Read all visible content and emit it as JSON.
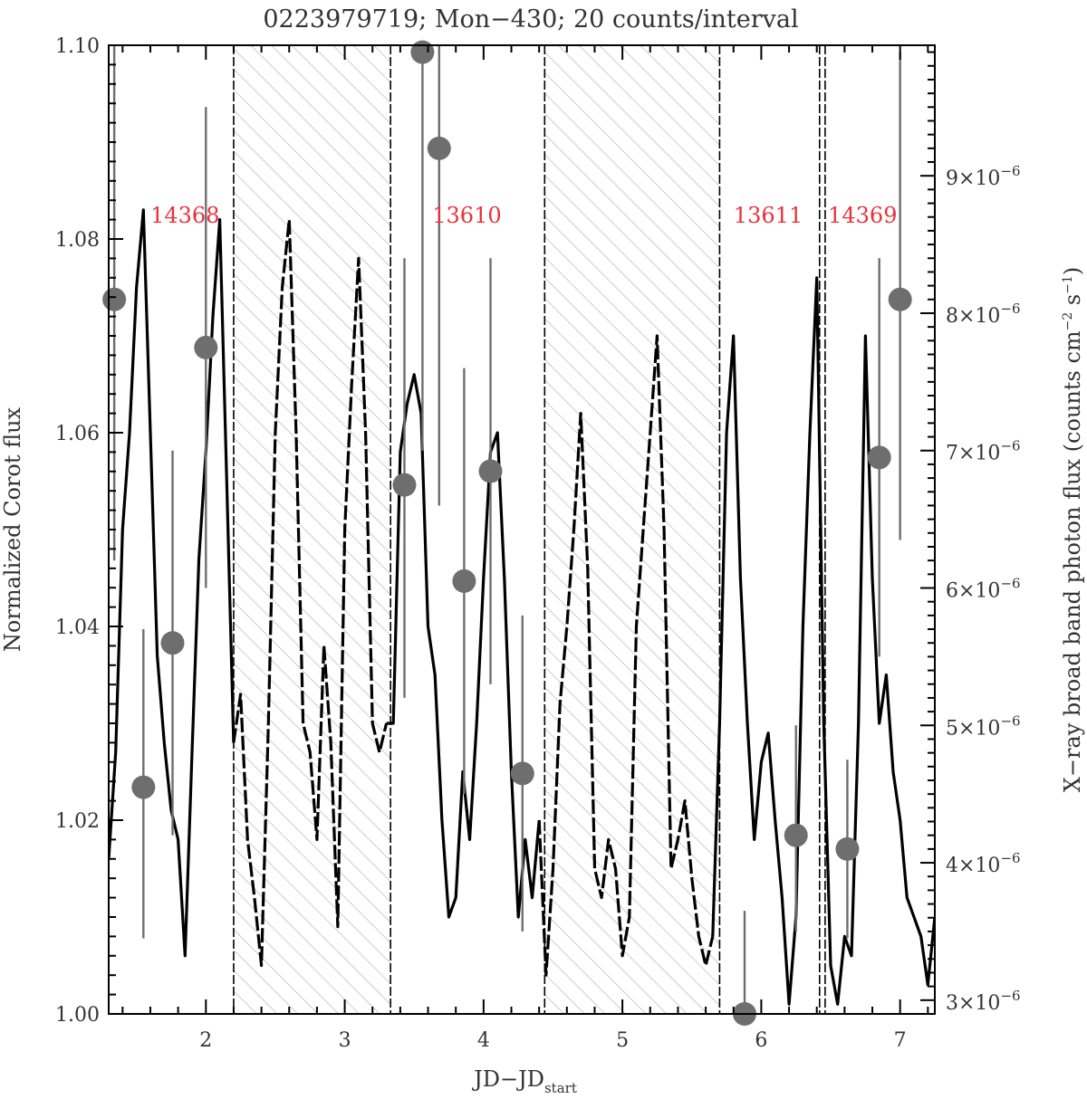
{
  "chart_data": {
    "type": "line",
    "title": "0223979719; Mon−430; 20 counts/interval",
    "xlabel_main": "JD−JD",
    "xlabel_sub": "start",
    "ylabel_left": "Normalized Corot flux",
    "ylabel_right": "X−ray broad band photon flux (counts cm",
    "xlim": [
      1.3,
      7.25
    ],
    "ylim_left": [
      1.0,
      1.1
    ],
    "ylim_right": [
      2.9e-06,
      9.95e-06
    ],
    "x_ticks": [
      2,
      3,
      4,
      5,
      6,
      7
    ],
    "x_tick_labels": [
      "2",
      "3",
      "4",
      "5",
      "6",
      "7"
    ],
    "y_left_ticks": [
      1.0,
      1.02,
      1.04,
      1.06,
      1.08,
      1.1
    ],
    "y_left_tick_labels": [
      "1.00",
      "1.02",
      "1.04",
      "1.06",
      "1.08",
      "1.10"
    ],
    "y_right_ticks": [
      3e-06,
      4e-06,
      5e-06,
      6e-06,
      7e-06,
      8e-06,
      9e-06
    ],
    "y_right_tick_mantissa": [
      "3",
      "4",
      "5",
      "6",
      "7",
      "8",
      "9"
    ],
    "y_right_tick_base": "×10",
    "y_right_tick_exp": "−6",
    "grid": false,
    "observation_windows": [
      {
        "label": "14368",
        "x_start": 1.3,
        "x_end": 2.2,
        "label_x": 1.85
      },
      {
        "label": "13610",
        "x_start": 3.33,
        "x_end": 4.44,
        "label_x": 3.88
      },
      {
        "label": "13611",
        "x_start": 5.7,
        "x_end": 6.42,
        "label_x": 6.05
      },
      {
        "label": "14369",
        "x_start": 6.46,
        "x_end": 7.25,
        "label_x": 6.73
      }
    ],
    "hatched_gaps": [
      {
        "x_start": 2.2,
        "x_end": 3.33
      },
      {
        "x_start": 4.44,
        "x_end": 5.7
      }
    ],
    "series": [
      {
        "style": "solid-in-windows-dashed-in-gaps",
        "x": [
          1.3,
          1.35,
          1.4,
          1.45,
          1.5,
          1.55,
          1.6,
          1.65,
          1.7,
          1.75,
          1.8,
          1.85,
          1.9,
          1.95,
          2.0,
          2.05,
          2.1,
          2.15,
          2.2,
          2.25,
          2.3,
          2.35,
          2.4,
          2.45,
          2.5,
          2.55,
          2.6,
          2.65,
          2.7,
          2.75,
          2.8,
          2.85,
          2.9,
          2.95,
          3.0,
          3.05,
          3.1,
          3.15,
          3.2,
          3.25,
          3.3,
          3.35,
          3.4,
          3.45,
          3.5,
          3.55,
          3.6,
          3.65,
          3.7,
          3.75,
          3.8,
          3.85,
          3.9,
          3.95,
          4.0,
          4.05,
          4.1,
          4.15,
          4.2,
          4.25,
          4.3,
          4.35,
          4.4,
          4.45,
          4.5,
          4.55,
          4.6,
          4.65,
          4.7,
          4.75,
          4.8,
          4.85,
          4.9,
          4.95,
          5.0,
          5.05,
          5.1,
          5.15,
          5.2,
          5.25,
          5.3,
          5.35,
          5.4,
          5.45,
          5.5,
          5.55,
          5.6,
          5.65,
          5.7,
          5.75,
          5.8,
          5.85,
          5.9,
          5.95,
          6.0,
          6.05,
          6.1,
          6.15,
          6.2,
          6.25,
          6.3,
          6.35,
          6.4,
          6.45,
          6.5,
          6.55,
          6.6,
          6.65,
          6.7,
          6.75,
          6.8,
          6.85,
          6.9,
          6.95,
          7.0,
          7.05,
          7.1,
          7.15,
          7.2,
          7.25
        ],
        "y": [
          1.016,
          1.027,
          1.05,
          1.06,
          1.075,
          1.083,
          1.06,
          1.037,
          1.028,
          1.021,
          1.018,
          1.006,
          1.027,
          1.047,
          1.058,
          1.072,
          1.082,
          1.055,
          1.028,
          1.033,
          1.018,
          1.012,
          1.005,
          1.03,
          1.06,
          1.075,
          1.082,
          1.06,
          1.03,
          1.027,
          1.018,
          1.038,
          1.028,
          1.009,
          1.05,
          1.065,
          1.078,
          1.06,
          1.03,
          1.027,
          1.03,
          1.03,
          1.058,
          1.063,
          1.066,
          1.062,
          1.04,
          1.035,
          1.02,
          1.01,
          1.012,
          1.025,
          1.018,
          1.03,
          1.045,
          1.058,
          1.06,
          1.045,
          1.025,
          1.01,
          1.018,
          1.012,
          1.02,
          1.004,
          1.015,
          1.032,
          1.04,
          1.05,
          1.062,
          1.046,
          1.015,
          1.012,
          1.018,
          1.015,
          1.006,
          1.01,
          1.04,
          1.05,
          1.06,
          1.07,
          1.05,
          1.015,
          1.018,
          1.022,
          1.014,
          1.008,
          1.005,
          1.008,
          1.03,
          1.06,
          1.07,
          1.045,
          1.03,
          1.018,
          1.026,
          1.029,
          1.02,
          1.012,
          1.001,
          1.01,
          1.04,
          1.06,
          1.076,
          1.03,
          1.005,
          1.001,
          1.008,
          1.006,
          1.03,
          1.07,
          1.045,
          1.03,
          1.035,
          1.025,
          1.02,
          1.012,
          1.01,
          1.008,
          1.003,
          1.01
        ]
      }
    ],
    "xray_points": [
      {
        "x": 1.34,
        "y": 8.1e-06,
        "err_lo": 6.2e-06,
        "err_hi": 9.95e-06
      },
      {
        "x": 1.55,
        "y": 4.55e-06,
        "err_lo": 3.45e-06,
        "err_hi": 5.7e-06
      },
      {
        "x": 1.76,
        "y": 5.6e-06,
        "err_lo": 4.2e-06,
        "err_hi": 7e-06
      },
      {
        "x": 2.0,
        "y": 7.75e-06,
        "err_lo": 6e-06,
        "err_hi": 9.5e-06
      },
      {
        "x": 3.43,
        "y": 6.75e-06,
        "err_lo": 5.2e-06,
        "err_hi": 8.4e-06
      },
      {
        "x": 3.56,
        "y": 9.9e-06,
        "err_lo": 7e-06,
        "err_hi": 9.95e-06
      },
      {
        "x": 3.68,
        "y": 9.2e-06,
        "err_lo": 6.6e-06,
        "err_hi": 9.95e-06
      },
      {
        "x": 3.86,
        "y": 6.05e-06,
        "err_lo": 4.5e-06,
        "err_hi": 7.6e-06
      },
      {
        "x": 4.05,
        "y": 6.85e-06,
        "err_lo": 5.3e-06,
        "err_hi": 8.4e-06
      },
      {
        "x": 4.28,
        "y": 4.65e-06,
        "err_lo": 3.5e-06,
        "err_hi": 5.8e-06
      },
      {
        "x": 5.88,
        "y": 2.9e-06,
        "err_lo": 2.9e-06,
        "err_hi": 3.65e-06
      },
      {
        "x": 6.25,
        "y": 4.2e-06,
        "err_lo": 3.5e-06,
        "err_hi": 5e-06
      },
      {
        "x": 6.62,
        "y": 4.1e-06,
        "err_lo": 3.45e-06,
        "err_hi": 4.75e-06
      },
      {
        "x": 6.85,
        "y": 6.95e-06,
        "err_lo": 5.5e-06,
        "err_hi": 8.4e-06
      },
      {
        "x": 7.0,
        "y": 8.1e-06,
        "err_lo": 6.35e-06,
        "err_hi": 9.9e-06
      }
    ],
    "colors": {
      "curve": "#000000",
      "xray_points": "#6e6e6e",
      "window_labels": "#e8323c",
      "hatch": "#b8b8b8",
      "axis_text": "#333333"
    }
  }
}
